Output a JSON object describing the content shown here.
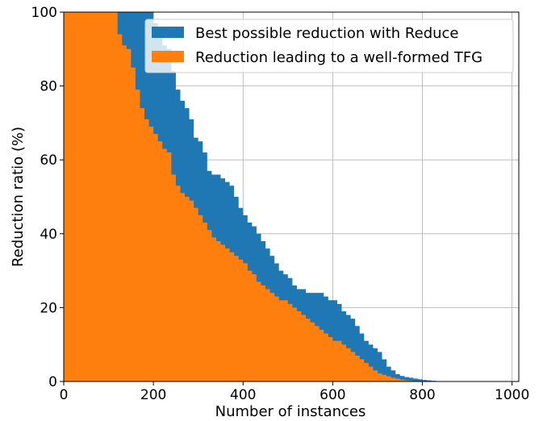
{
  "chart_data": {
    "type": "area",
    "title": "",
    "xlabel": "Number of instances",
    "ylabel": "Reduction ratio (%)",
    "xlim": [
      0,
      1015
    ],
    "ylim": [
      0,
      100
    ],
    "xticks": [
      0,
      200,
      400,
      600,
      800,
      1000
    ],
    "yticks": [
      0,
      20,
      40,
      60,
      80,
      100
    ],
    "grid": true,
    "legend_position": "top-right",
    "series": [
      {
        "name": "Best possible reduction with Reduce",
        "color": "#1f77b4",
        "x": [
          0,
          110,
          120,
          130,
          140,
          150,
          160,
          170,
          180,
          190,
          200,
          210,
          220,
          230,
          240,
          250,
          260,
          270,
          280,
          290,
          300,
          310,
          320,
          330,
          340,
          350,
          360,
          370,
          380,
          390,
          400,
          410,
          420,
          430,
          440,
          450,
          460,
          470,
          480,
          490,
          500,
          510,
          520,
          530,
          540,
          550,
          560,
          570,
          580,
          590,
          600,
          610,
          620,
          630,
          640,
          650,
          660,
          670,
          680,
          690,
          700,
          710,
          720,
          730,
          740,
          750,
          760,
          770,
          780,
          790,
          800,
          810,
          820,
          830,
          850,
          900,
          1000,
          1015
        ],
        "values": [
          100,
          100,
          100,
          100,
          100,
          100,
          100,
          100,
          100,
          100,
          97,
          93,
          91,
          90,
          84,
          79,
          76,
          74,
          71,
          66,
          65,
          62,
          57,
          56,
          56,
          55,
          54,
          53,
          50,
          47,
          45,
          43,
          42,
          40,
          38,
          36,
          34,
          32,
          30,
          29,
          28,
          26,
          25,
          25,
          24,
          24,
          24,
          24,
          23,
          22,
          22,
          21,
          19,
          18,
          17,
          15,
          13,
          11,
          10,
          9,
          8,
          6,
          4,
          3,
          2,
          1.5,
          1.2,
          1,
          0.8,
          0.6,
          0.4,
          0.3,
          0.2,
          0.1,
          0.05,
          0,
          0,
          0
        ]
      },
      {
        "name": "Reduction leading to a well-formed TFG",
        "color": "#ff7f0e",
        "x": [
          0,
          110,
          120,
          130,
          140,
          150,
          160,
          170,
          180,
          190,
          200,
          210,
          220,
          230,
          240,
          250,
          260,
          270,
          280,
          290,
          300,
          310,
          320,
          330,
          340,
          350,
          360,
          370,
          380,
          390,
          400,
          410,
          420,
          430,
          440,
          450,
          460,
          470,
          480,
          490,
          500,
          510,
          520,
          530,
          540,
          550,
          560,
          570,
          580,
          590,
          600,
          610,
          620,
          630,
          640,
          650,
          660,
          670,
          680,
          690,
          700,
          710,
          720,
          730,
          740,
          750,
          760,
          770,
          780,
          790,
          800,
          810,
          820,
          830,
          850,
          900,
          1000,
          1015
        ],
        "values": [
          100,
          100,
          94,
          91,
          90,
          85,
          79,
          74,
          71,
          69,
          67,
          65,
          63,
          62,
          56,
          53,
          51,
          50,
          49,
          47,
          45,
          43,
          41,
          39,
          38,
          37,
          36,
          35,
          34,
          33,
          32,
          30,
          29,
          27,
          26,
          25,
          24,
          23,
          22,
          22,
          21,
          20,
          19,
          18,
          17,
          16,
          15,
          14,
          13,
          12,
          11,
          11,
          10,
          9,
          8,
          7,
          6,
          5,
          4,
          3,
          2.2,
          1.8,
          1.4,
          1,
          0.8,
          0.5,
          0.3,
          0.2,
          0.1,
          0.05,
          0,
          0,
          0,
          0,
          0,
          0,
          0,
          0
        ]
      }
    ]
  }
}
